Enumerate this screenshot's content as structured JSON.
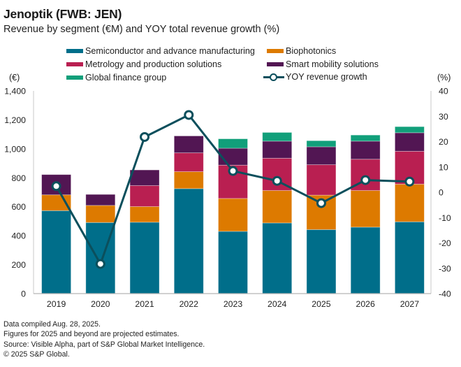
{
  "header": {
    "title": "Jenoptik (FWB: JEN)",
    "subtitle": "Revenue by segment (€M) and YOY total revenue growth (%)"
  },
  "legend": {
    "items": [
      {
        "label": "Semiconductor and advance manufacturing",
        "color": "#006e8a",
        "kind": "bar"
      },
      {
        "label": "Biophotonics",
        "color": "#dd7a00",
        "kind": "bar"
      },
      {
        "label": "Metrology and production solutions",
        "color": "#b91f51",
        "kind": "bar"
      },
      {
        "label": "Smart mobility solutions",
        "color": "#521653",
        "kind": "bar"
      },
      {
        "label": "Global finance group",
        "color": "#119f7a",
        "kind": "bar"
      },
      {
        "label": "YOY revenue growth",
        "color": "#0b4f5c",
        "kind": "line"
      }
    ]
  },
  "axes": {
    "left_unit": "(€)",
    "right_unit": "(%)"
  },
  "chart_data": {
    "type": "bar",
    "stacked": true,
    "title": "Jenoptik (FWB: JEN)",
    "subtitle": "Revenue by segment (€M) and YOY total revenue growth (%)",
    "categories": [
      "2019",
      "2020",
      "2021",
      "2022",
      "2023",
      "2024",
      "2025",
      "2026",
      "2027"
    ],
    "series": [
      {
        "name": "Semiconductor and advance manufacturing",
        "type": "bar",
        "axis": "left",
        "color": "#006e8a",
        "values": [
          573,
          491,
          493,
          725,
          430,
          488,
          442,
          459,
          496
        ]
      },
      {
        "name": "Biophotonics",
        "type": "bar",
        "axis": "left",
        "color": "#dd7a00",
        "values": [
          109,
          118,
          108,
          117,
          227,
          224,
          238,
          253,
          260
        ]
      },
      {
        "name": "Metrology and production solutions",
        "type": "bar",
        "axis": "left",
        "color": "#b91f51",
        "values": [
          0,
          0,
          145,
          130,
          230,
          223,
          210,
          216,
          227
        ]
      },
      {
        "name": "Smart mobility solutions",
        "type": "bar",
        "axis": "left",
        "color": "#521653",
        "values": [
          140,
          76,
          108,
          117,
          117,
          118,
          124,
          125,
          128
        ]
      },
      {
        "name": "Global finance group",
        "type": "bar",
        "axis": "left",
        "color": "#119f7a",
        "values": [
          0,
          0,
          0,
          0,
          65,
          60,
          42,
          42,
          42
        ]
      },
      {
        "name": "YOY revenue growth",
        "type": "line",
        "axis": "right",
        "color": "#0b4f5c",
        "values": [
          2.4,
          -28.3,
          21.8,
          30.5,
          8.4,
          4.5,
          -4.3,
          4.8,
          4.2
        ]
      }
    ],
    "left_axis": {
      "label": "(€)",
      "range": [
        0,
        1400
      ],
      "ticks": [
        0,
        200,
        400,
        600,
        800,
        1000,
        1200,
        1400
      ],
      "tick_labels": [
        "0",
        "200",
        "400",
        "600",
        "800",
        "1,000",
        "1,200",
        "1,400"
      ]
    },
    "right_axis": {
      "label": "(%)",
      "range": [
        -40,
        40
      ],
      "ticks": [
        -40,
        -30,
        -20,
        -10,
        0,
        10,
        20,
        30,
        40
      ],
      "tick_labels": [
        "-40",
        "-30",
        "-20",
        "-10",
        "0",
        "10",
        "20",
        "30",
        "40"
      ]
    },
    "xlabel": "",
    "grid": false,
    "legend_position": "top"
  },
  "footnotes": [
    "Data compiled Aug. 28, 2025.",
    "Figures for 2025 and beyond are projected estimates.",
    "Source: Visible Alpha, part of S&P Global Market Intelligence.",
    "© 2025 S&P Global."
  ]
}
